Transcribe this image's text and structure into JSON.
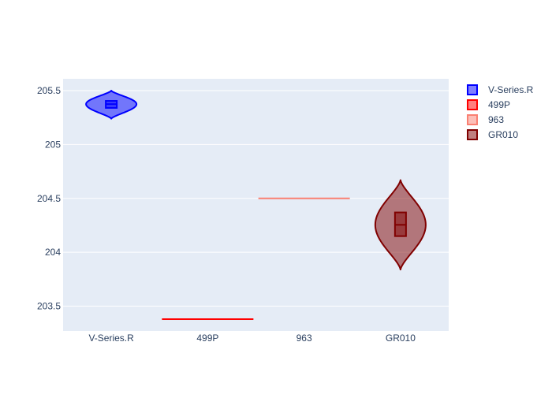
{
  "chart_data": {
    "type": "violin",
    "categories": [
      "V-Series.R",
      "499P",
      "963",
      "GR010"
    ],
    "ylim": [
      203.27,
      205.61
    ],
    "yticks": [
      203.5,
      204,
      204.5,
      205,
      205.5
    ],
    "ytick_labels": [
      "203.5",
      "204",
      "204.5",
      "205",
      "205.5"
    ],
    "grid": true,
    "legend_position": "right",
    "series": [
      {
        "name": "V-Series.R",
        "category": "V-Series.R",
        "color": "#0000ff",
        "fill": "rgba(0,0,255,0.5)",
        "min": 205.24,
        "max": 205.5,
        "q1": 205.34,
        "median": 205.375,
        "q3": 205.405
      },
      {
        "name": "499P",
        "category": "499P",
        "color": "#ff0000",
        "fill": "rgba(255,0,0,0.5)",
        "min": 203.38,
        "max": 203.38,
        "q1": 203.38,
        "median": 203.38,
        "q3": 203.38
      },
      {
        "name": "963",
        "category": "963",
        "color": "#fa8072",
        "fill": "rgba(250,128,114,0.5)",
        "min": 204.5,
        "max": 204.5,
        "q1": 204.5,
        "median": 204.5,
        "q3": 204.5
      },
      {
        "name": "GR010",
        "category": "GR010",
        "color": "#800000",
        "fill": "rgba(128,0,0,0.5)",
        "min": 203.84,
        "max": 204.67,
        "q1": 204.15,
        "median": 204.255,
        "q3": 204.37
      }
    ]
  }
}
